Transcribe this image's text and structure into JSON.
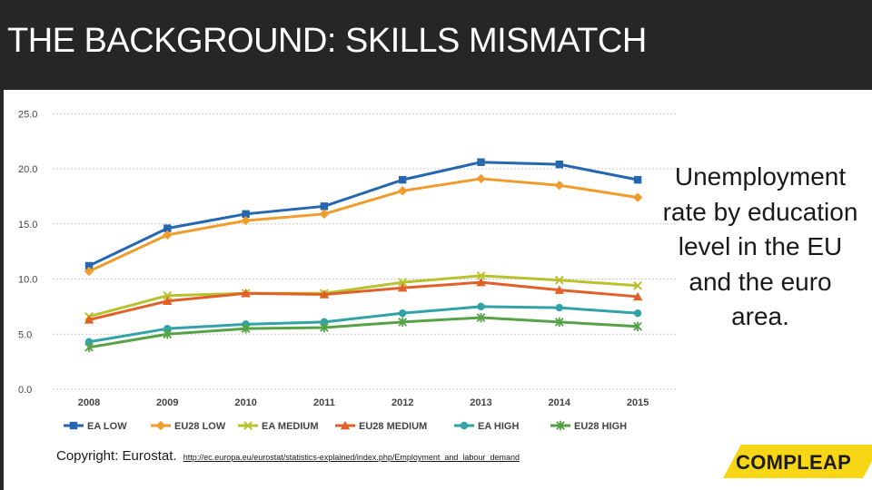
{
  "slide": {
    "title": "THE BACKGROUND: SKILLS MISMATCH",
    "caption": "Unemployment rate by education level in the EU and the euro area.",
    "copyright": "Copyright: Eurostat.",
    "source_link": "http://ec.europa.eu/eurostat/statistics-explained/index.php/Employment_and_labour_demand",
    "logo_text": "COMPLEAP",
    "colors": {
      "header_bg": "#262626",
      "logo_yellow": "#f7d615"
    }
  },
  "chart_data": {
    "type": "line",
    "title": "",
    "xlabel": "",
    "ylabel": "",
    "categories": [
      "2008",
      "2009",
      "2010",
      "2011",
      "2012",
      "2013",
      "2014",
      "2015"
    ],
    "ylim": [
      0,
      25
    ],
    "yticks": [
      "0.0",
      "5.0",
      "10.0",
      "15.0",
      "20.0",
      "25.0"
    ],
    "grid": "horizontal-dotted",
    "legend_position": "bottom",
    "series": [
      {
        "name": "EA LOW",
        "color": "#2467b0",
        "marker": "square",
        "values": [
          11.2,
          14.6,
          15.9,
          16.6,
          19.0,
          20.6,
          20.4,
          19.0
        ]
      },
      {
        "name": "EU28 LOW",
        "color": "#f09c2d",
        "marker": "diamond",
        "values": [
          10.7,
          14.0,
          15.3,
          15.9,
          18.0,
          19.1,
          18.5,
          17.4
        ]
      },
      {
        "name": "EA MEDIUM",
        "color": "#b8c22e",
        "marker": "x",
        "values": [
          6.6,
          8.5,
          8.7,
          8.7,
          9.7,
          10.3,
          9.9,
          9.4
        ]
      },
      {
        "name": "EU28 MEDIUM",
        "color": "#e06027",
        "marker": "triangle",
        "values": [
          6.3,
          8.0,
          8.7,
          8.6,
          9.2,
          9.7,
          9.0,
          8.4
        ]
      },
      {
        "name": "EA HIGH",
        "color": "#31a2a6",
        "marker": "circle",
        "values": [
          4.3,
          5.5,
          5.9,
          6.1,
          6.9,
          7.5,
          7.4,
          6.9
        ]
      },
      {
        "name": "EU28 HIGH",
        "color": "#55a247",
        "marker": "star",
        "values": [
          3.8,
          5.0,
          5.5,
          5.6,
          6.1,
          6.5,
          6.1,
          5.7
        ]
      }
    ]
  }
}
